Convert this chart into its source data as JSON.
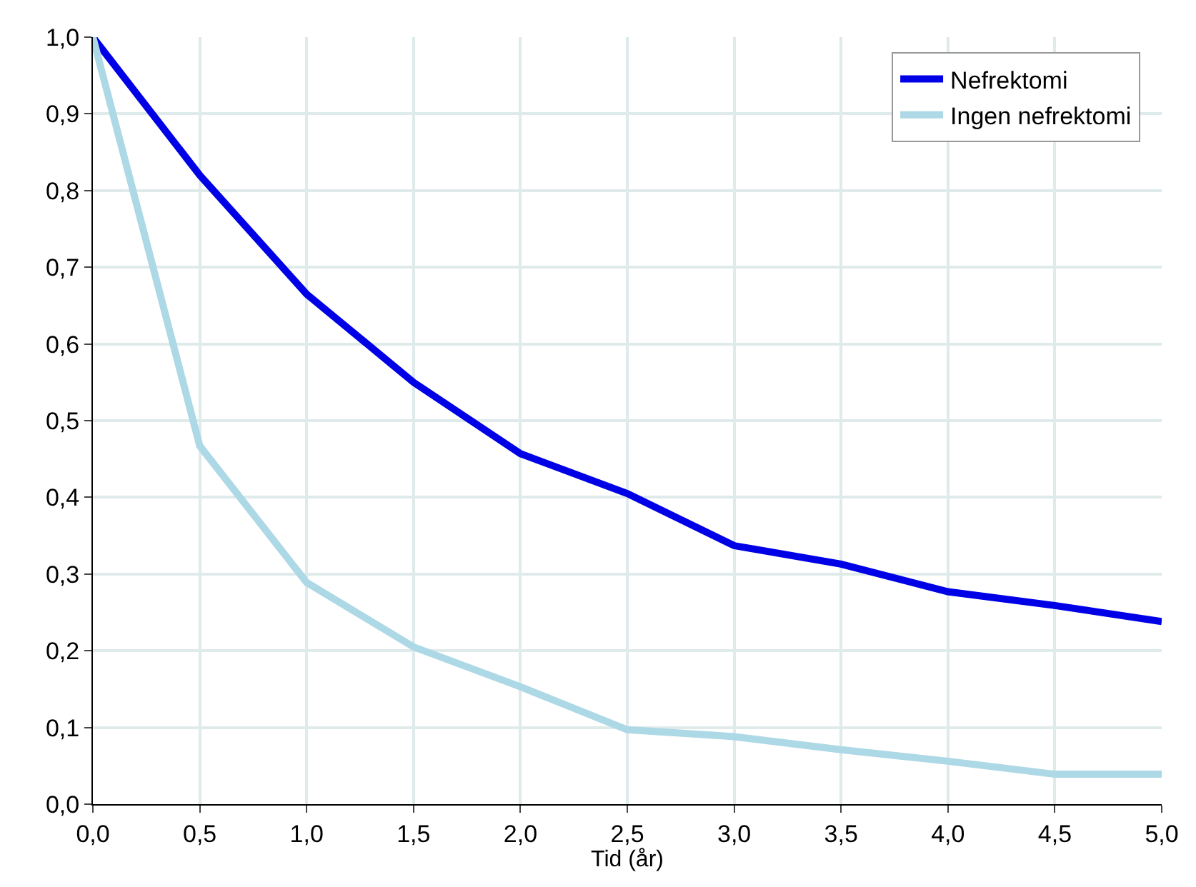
{
  "chart_data": {
    "type": "line",
    "xlabel": "Tid (år)",
    "x": [
      0,
      0.5,
      1,
      1.5,
      2,
      2.5,
      3,
      3.5,
      4,
      4.5,
      5
    ],
    "series": [
      {
        "name": "Nefrektomi",
        "color": "#0000e6",
        "values": [
          1.0,
          0.82,
          0.665,
          0.55,
          0.457,
          0.405,
          0.337,
          0.313,
          0.277,
          0.259,
          0.238
        ]
      },
      {
        "name": "Ingen nefrektomi",
        "color": "#add8e6",
        "values": [
          1.0,
          0.467,
          0.289,
          0.205,
          0.153,
          0.097,
          0.088,
          0.071,
          0.056,
          0.039,
          0.039
        ]
      }
    ],
    "xlim": [
      0,
      5
    ],
    "ylim": [
      0,
      1
    ],
    "xticks": [
      {
        "value": 0,
        "label": "0,0"
      },
      {
        "value": 0.5,
        "label": "0,5"
      },
      {
        "value": 1,
        "label": "1,0"
      },
      {
        "value": 1.5,
        "label": "1,5"
      },
      {
        "value": 2,
        "label": "2,0"
      },
      {
        "value": 2.5,
        "label": "2,5"
      },
      {
        "value": 3,
        "label": "3,0"
      },
      {
        "value": 3.5,
        "label": "3,5"
      },
      {
        "value": 4,
        "label": "4,0"
      },
      {
        "value": 4.5,
        "label": "4,5"
      },
      {
        "value": 5,
        "label": "5,0"
      }
    ],
    "yticks": [
      {
        "value": 0,
        "label": "0,0"
      },
      {
        "value": 0.1,
        "label": "0,1"
      },
      {
        "value": 0.2,
        "label": "0,2"
      },
      {
        "value": 0.3,
        "label": "0,3"
      },
      {
        "value": 0.4,
        "label": "0,4"
      },
      {
        "value": 0.5,
        "label": "0,5"
      },
      {
        "value": 0.6,
        "label": "0,6"
      },
      {
        "value": 0.7,
        "label": "0,7"
      },
      {
        "value": 0.8,
        "label": "0,8"
      },
      {
        "value": 0.9,
        "label": "0,9"
      },
      {
        "value": 1,
        "label": "1,0"
      }
    ],
    "grid": true,
    "legend": "top right",
    "marker": "none",
    "line_style": "solid"
  }
}
